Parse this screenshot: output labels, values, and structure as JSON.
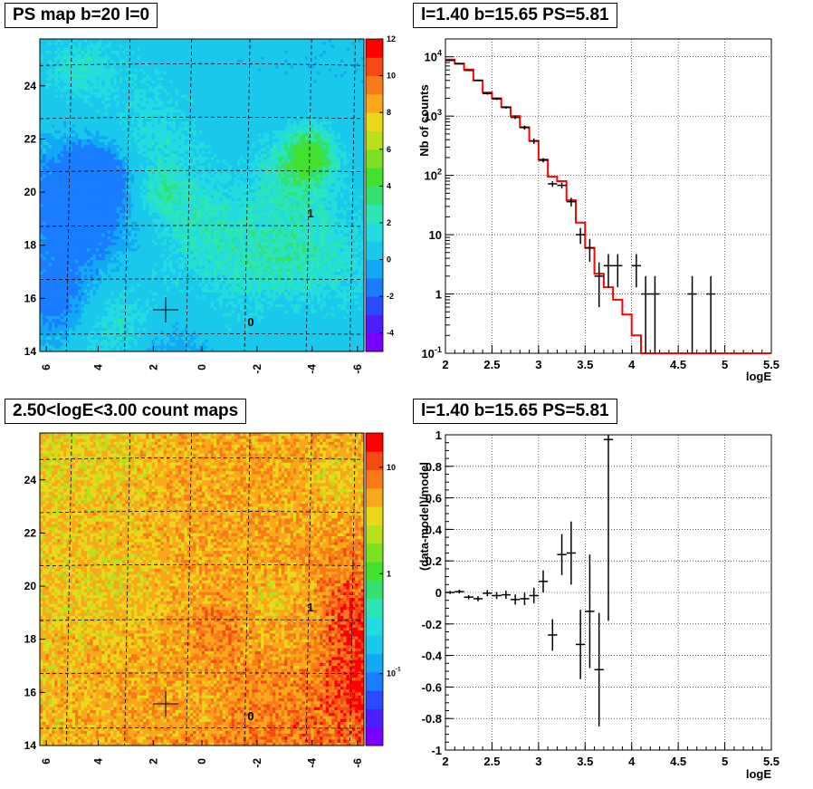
{
  "panels": {
    "ps_map": {
      "title": "PS map b=20 l=0"
    },
    "spectrum": {
      "title": "l=1.40 b=15.65 PS=5.81"
    },
    "count_map": {
      "title": "2.50<logE<3.00 count maps"
    },
    "residual": {
      "title": "l=1.40 b=15.65 PS=5.81"
    }
  },
  "chart_data": [
    {
      "id": "ps_map",
      "type": "heatmap",
      "title": "PS map b=20 l=0",
      "x_ticks": [
        "6",
        "4",
        "2",
        "0",
        "-2",
        "-4",
        "-6"
      ],
      "y_ticks": [
        "14",
        "16",
        "18",
        "20",
        "22",
        "24"
      ],
      "xlim": [
        6.2,
        -6.2
      ],
      "ylim": [
        14,
        25.7
      ],
      "colorbar": {
        "min": -5,
        "max": 12,
        "ticks": [
          "-4",
          "-2",
          "0",
          "2",
          "4",
          "6",
          "8",
          "10",
          "12"
        ]
      },
      "annotations": [
        {
          "text": "1",
          "l": -4.1,
          "b": 19.3
        },
        {
          "text": "0",
          "l": -1.8,
          "b": 15.0
        }
      ],
      "marker": {
        "l": 1.4,
        "b": 15.65
      },
      "colors": {
        "dominant": "#22d4ea",
        "hot": "#33dd33",
        "cool": "#1aa0ee"
      }
    },
    {
      "id": "spectrum",
      "type": "line",
      "title": "l=1.40 b=15.65 PS=5.81",
      "xlabel": "logE",
      "ylabel": "Nb of counts",
      "y_scale": "log",
      "xlim": [
        2,
        5.5
      ],
      "ylim": [
        0.1,
        20000
      ],
      "x_ticks": [
        "2",
        "2.5",
        "3",
        "3.5",
        "4",
        "4.5",
        "5",
        "5.5"
      ],
      "y_ticks": [
        "10^-1",
        "1",
        "10",
        "10^2",
        "10^3",
        "10^4"
      ],
      "grid": true,
      "series": [
        {
          "style": "points-with-errors",
          "color": "#000000",
          "points": [
            {
              "x": 2.05,
              "y": 8700,
              "lo": 8500,
              "hi": 8900
            },
            {
              "x": 2.15,
              "y": 7600,
              "lo": 7450,
              "hi": 7750
            },
            {
              "x": 2.25,
              "y": 5900,
              "lo": 5750,
              "hi": 6050
            },
            {
              "x": 2.35,
              "y": 4000,
              "lo": 3870,
              "hi": 4130
            },
            {
              "x": 2.45,
              "y": 2400,
              "lo": 2300,
              "hi": 2500
            },
            {
              "x": 2.55,
              "y": 1950,
              "lo": 1860,
              "hi": 2040
            },
            {
              "x": 2.65,
              "y": 1400,
              "lo": 1330,
              "hi": 1470
            },
            {
              "x": 2.75,
              "y": 950,
              "lo": 890,
              "hi": 1010
            },
            {
              "x": 2.85,
              "y": 640,
              "lo": 590,
              "hi": 690
            },
            {
              "x": 2.95,
              "y": 380,
              "lo": 340,
              "hi": 420
            },
            {
              "x": 3.05,
              "y": 180,
              "lo": 165,
              "hi": 195
            },
            {
              "x": 3.15,
              "y": 72,
              "lo": 64,
              "hi": 80
            },
            {
              "x": 3.25,
              "y": 68,
              "lo": 60,
              "hi": 76
            },
            {
              "x": 3.35,
              "y": 36,
              "lo": 30,
              "hi": 42
            },
            {
              "x": 3.45,
              "y": 10,
              "lo": 7,
              "hi": 13
            },
            {
              "x": 3.55,
              "y": 6,
              "lo": 3.5,
              "hi": 8.5
            },
            {
              "x": 3.65,
              "y": 2,
              "lo": 0.6,
              "hi": 3.4
            },
            {
              "x": 3.75,
              "y": 3,
              "lo": 1.3,
              "hi": 4.7
            },
            {
              "x": 3.85,
              "y": 3,
              "lo": 1.3,
              "hi": 4.7
            },
            {
              "x": 4.05,
              "y": 3,
              "lo": 1.3,
              "hi": 4.7
            },
            {
              "x": 4.15,
              "y": 1,
              "lo": 0.1,
              "hi": 2
            },
            {
              "x": 4.25,
              "y": 1,
              "lo": 0.1,
              "hi": 2
            },
            {
              "x": 4.65,
              "y": 1,
              "lo": 0.1,
              "hi": 2
            },
            {
              "x": 4.85,
              "y": 1,
              "lo": 0.1,
              "hi": 2
            }
          ]
        },
        {
          "style": "histogram-step",
          "color": "#ff0000",
          "bin_width": 0.1,
          "edges_start": 2.0,
          "values": [
            9000,
            7700,
            6100,
            4000,
            2500,
            2000,
            1420,
            1000,
            650,
            380,
            185,
            95,
            80,
            38,
            16,
            6,
            2.2,
            1.3,
            0.8,
            0.45,
            0.2,
            0.08,
            0.05,
            0.05,
            0.05,
            0.05,
            0.05,
            0.05,
            0.05,
            0.05,
            0.05,
            0.05,
            0.05,
            0.05,
            0.05
          ]
        }
      ]
    },
    {
      "id": "count_map",
      "type": "heatmap",
      "title": "2.50<logE<3.00 count maps",
      "x_ticks": [
        "6",
        "4",
        "2",
        "0",
        "-2",
        "-4",
        "-6"
      ],
      "y_ticks": [
        "14",
        "16",
        "18",
        "20",
        "22",
        "24"
      ],
      "xlim": [
        6.2,
        -6.2
      ],
      "ylim": [
        14,
        25.7
      ],
      "colorbar": {
        "scale": "log",
        "ticks": [
          "10",
          "1",
          "10^-1"
        ]
      },
      "annotations": [
        {
          "text": "1",
          "l": -4.1,
          "b": 19.3
        },
        {
          "text": "0",
          "l": -1.8,
          "b": 15.0
        }
      ],
      "marker": {
        "l": 1.4,
        "b": 15.65
      },
      "colors": {
        "dominant": "#fc9a1c",
        "hot": "#f22b0a",
        "cool": "#f6e23a"
      }
    },
    {
      "id": "residual",
      "type": "scatter",
      "title": "l=1.40 b=15.65 PS=5.81",
      "xlabel": "logE",
      "ylabel": "(data-model)/model",
      "xlim": [
        2,
        5.5
      ],
      "ylim": [
        -1,
        1
      ],
      "x_ticks": [
        "2",
        "2.5",
        "3",
        "3.5",
        "4",
        "4.5",
        "5",
        "5.5"
      ],
      "y_ticks": [
        "-1",
        "-0.8",
        "-0.6",
        "-0.4",
        "-0.2",
        "0",
        "0.2",
        "0.4",
        "0.6",
        "0.8",
        "1"
      ],
      "grid": true,
      "series": [
        {
          "style": "points-with-errors",
          "color": "#000000",
          "points": [
            {
              "x": 2.05,
              "y": 0.0,
              "err": 0.01
            },
            {
              "x": 2.15,
              "y": 0.005,
              "err": 0.012
            },
            {
              "x": 2.25,
              "y": -0.03,
              "err": 0.013
            },
            {
              "x": 2.35,
              "y": -0.04,
              "err": 0.016
            },
            {
              "x": 2.45,
              "y": -0.005,
              "err": 0.02
            },
            {
              "x": 2.55,
              "y": -0.02,
              "err": 0.022
            },
            {
              "x": 2.65,
              "y": -0.015,
              "err": 0.026
            },
            {
              "x": 2.75,
              "y": -0.045,
              "err": 0.032
            },
            {
              "x": 2.85,
              "y": -0.04,
              "err": 0.04
            },
            {
              "x": 2.95,
              "y": -0.02,
              "err": 0.05
            },
            {
              "x": 3.05,
              "y": 0.07,
              "err": 0.07
            },
            {
              "x": 3.15,
              "y": -0.27,
              "err": 0.1
            },
            {
              "x": 3.25,
              "y": 0.24,
              "err": 0.13
            },
            {
              "x": 3.35,
              "y": 0.25,
              "err": 0.2
            },
            {
              "x": 3.45,
              "y": -0.33,
              "err": 0.22
            },
            {
              "x": 3.55,
              "y": -0.12,
              "err": 0.36
            },
            {
              "x": 3.65,
              "y": -0.49,
              "err": 0.36
            },
            {
              "x": 3.75,
              "y": 0.97,
              "err": 1.15
            }
          ]
        }
      ]
    }
  ]
}
